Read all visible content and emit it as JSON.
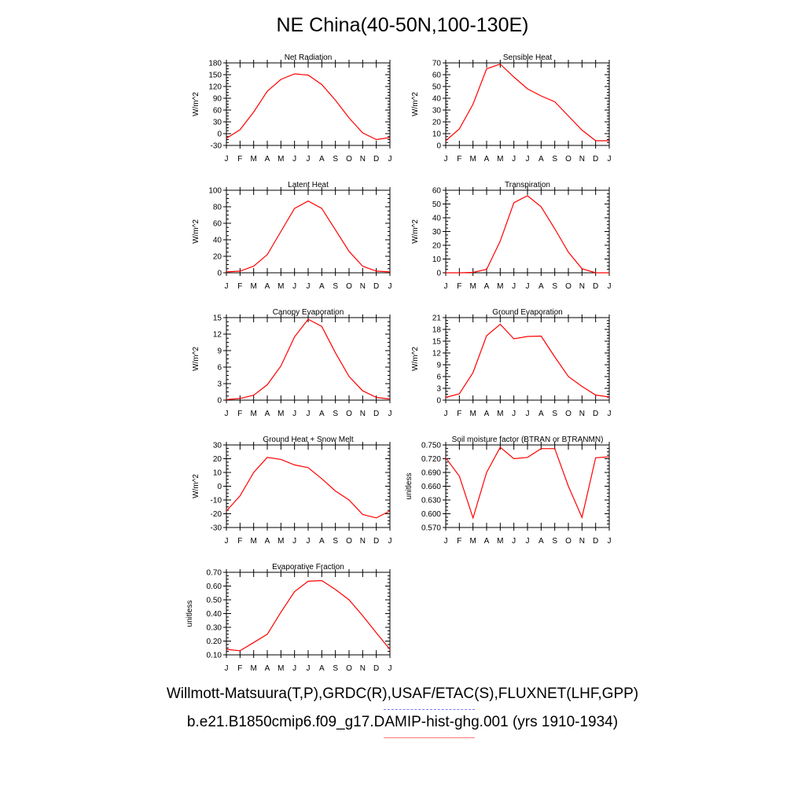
{
  "page_title": "NE China(40-50N,100-130E)",
  "legend": {
    "line1": "Willmott-Matsuura(T,P),GRDC(R),USAF/ETAC(S),FLUXNET(LHF,GPP)",
    "line1_color": "#7777ff",
    "line2": "b.e21.B1850cmip6.f09_g17.DAMIP-hist-ghg.001 (yrs 1910-1934)",
    "line2_color": "#ff7777"
  },
  "chart_data": [
    {
      "type": "line",
      "title": "Net Radiation",
      "ylabel": "W/m^2",
      "ylim": [
        -30,
        180
      ],
      "yticks": [
        "-30",
        "0",
        "30",
        "60",
        "90",
        "120",
        "150",
        "180"
      ],
      "x": [
        "J",
        "F",
        "M",
        "A",
        "M",
        "J",
        "J",
        "A",
        "S",
        "O",
        "N",
        "D",
        "J"
      ],
      "series": [
        {
          "values": [
            -12,
            10,
            55,
            108,
            138,
            152,
            149,
            125,
            85,
            40,
            2,
            -15,
            -10
          ],
          "color": "#ff0000"
        }
      ]
    },
    {
      "type": "line",
      "title": "Sensible Heat",
      "ylabel": "W/m^2",
      "ylim": [
        0,
        70
      ],
      "yticks": [
        "0",
        "10",
        "20",
        "30",
        "40",
        "50",
        "60",
        "70"
      ],
      "x": [
        "J",
        "F",
        "M",
        "A",
        "M",
        "J",
        "J",
        "A",
        "S",
        "O",
        "N",
        "D",
        "J"
      ],
      "series": [
        {
          "values": [
            4,
            14,
            35,
            65,
            69,
            58,
            48,
            42,
            37,
            25,
            13,
            4,
            4
          ],
          "color": "#ff0000"
        }
      ]
    },
    {
      "type": "line",
      "title": "Latent Heat",
      "ylabel": "W/m^2",
      "ylim": [
        0,
        100
      ],
      "yticks": [
        "0",
        "20",
        "40",
        "60",
        "80",
        "100"
      ],
      "x": [
        "J",
        "F",
        "M",
        "A",
        "M",
        "J",
        "J",
        "A",
        "S",
        "O",
        "N",
        "D",
        "J"
      ],
      "series": [
        {
          "values": [
            1,
            2,
            8,
            22,
            50,
            78,
            87,
            78,
            52,
            26,
            8,
            2,
            1
          ],
          "color": "#ff0000"
        }
      ]
    },
    {
      "type": "line",
      "title": "Transpiration",
      "ylabel": "W/m^2",
      "ylim": [
        0,
        60
      ],
      "yticks": [
        "0",
        "10",
        "20",
        "30",
        "40",
        "50",
        "60"
      ],
      "x": [
        "J",
        "F",
        "M",
        "A",
        "M",
        "J",
        "J",
        "A",
        "S",
        "O",
        "N",
        "D",
        "J"
      ],
      "series": [
        {
          "values": [
            0,
            0,
            0.3,
            2.5,
            23,
            51,
            56,
            48,
            32,
            15,
            3,
            0,
            0
          ],
          "color": "#ff0000"
        }
      ]
    },
    {
      "type": "line",
      "title": "Canopy Evaporation",
      "ylabel": "W/m^2",
      "ylim": [
        0,
        15
      ],
      "yticks": [
        "0",
        "3",
        "6",
        "9",
        "12",
        "15"
      ],
      "x": [
        "J",
        "F",
        "M",
        "A",
        "M",
        "J",
        "J",
        "A",
        "S",
        "O",
        "N",
        "D",
        "J"
      ],
      "series": [
        {
          "values": [
            0.1,
            0.3,
            0.9,
            2.8,
            6.2,
            11.5,
            14.7,
            13.4,
            8.6,
            4.3,
            1.7,
            0.5,
            0.2
          ],
          "color": "#ff0000"
        }
      ]
    },
    {
      "type": "line",
      "title": "Ground Evaporation",
      "ylabel": "W/m^2",
      "ylim": [
        0,
        21
      ],
      "yticks": [
        "0",
        "3",
        "6",
        "9",
        "12",
        "15",
        "18",
        "21"
      ],
      "x": [
        "J",
        "F",
        "M",
        "A",
        "M",
        "J",
        "J",
        "A",
        "S",
        "O",
        "N",
        "D",
        "J"
      ],
      "series": [
        {
          "values": [
            0.7,
            1.6,
            7,
            16.4,
            19.3,
            15.6,
            16.2,
            16.3,
            11,
            6,
            3.5,
            1.3,
            0.8
          ],
          "color": "#ff0000"
        }
      ]
    },
    {
      "type": "line",
      "title": "Ground Heat + Snow Melt",
      "ylabel": "W/m^2",
      "ylim": [
        -30,
        30
      ],
      "yticks": [
        "-30",
        "-20",
        "-10",
        "0",
        "10",
        "20",
        "30"
      ],
      "x": [
        "J",
        "F",
        "M",
        "A",
        "M",
        "J",
        "J",
        "A",
        "S",
        "O",
        "N",
        "D",
        "J"
      ],
      "series": [
        {
          "values": [
            -18,
            -7,
            10,
            21,
            19.5,
            15.5,
            13.5,
            5.5,
            -3.5,
            -10,
            -20.5,
            -23,
            -18
          ],
          "color": "#ff0000"
        }
      ]
    },
    {
      "type": "line",
      "title": "Soil moisture factor (BTRAN or BTRANMN)",
      "ylabel": "unitless",
      "ylim": [
        0.57,
        0.75
      ],
      "yticks": [
        "0.570",
        "0.600",
        "0.630",
        "0.660",
        "0.690",
        "0.720",
        "0.750"
      ],
      "x": [
        "J",
        "F",
        "M",
        "A",
        "M",
        "J",
        "J",
        "A",
        "S",
        "O",
        "N",
        "D",
        "J"
      ],
      "series": [
        {
          "values": [
            0.722,
            0.682,
            0.591,
            0.69,
            0.745,
            0.72,
            0.723,
            0.742,
            0.742,
            0.66,
            0.592,
            0.722,
            0.724
          ],
          "color": "#ff0000"
        }
      ]
    },
    {
      "type": "line",
      "title": "Evaporative Fraction",
      "ylabel": "unitless",
      "ylim": [
        0.1,
        0.7
      ],
      "yticks": [
        "0.10",
        "0.20",
        "0.30",
        "0.40",
        "0.50",
        "0.60",
        "0.70"
      ],
      "x": [
        "J",
        "F",
        "M",
        "A",
        "M",
        "J",
        "J",
        "A",
        "S",
        "O",
        "N",
        "D",
        "J"
      ],
      "series": [
        {
          "values": [
            0.14,
            0.13,
            0.19,
            0.25,
            0.41,
            0.56,
            0.635,
            0.64,
            0.575,
            0.5,
            0.385,
            0.26,
            0.14
          ],
          "color": "#ff0000"
        }
      ]
    }
  ]
}
